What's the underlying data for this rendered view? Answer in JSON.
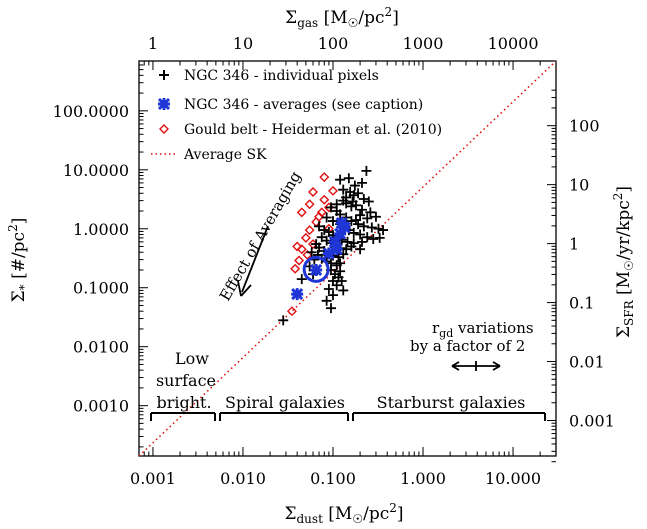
{
  "chart_data": {
    "type": "scatter",
    "title": "",
    "x_bottom": {
      "label_main": "Σ",
      "label_sub": "dust",
      "label_unit": " [M",
      "label_sun": "☉",
      "label_tail": "/pc",
      "label_sup": "2",
      "label_end": "]",
      "scale": "log",
      "range": [
        0.0007,
        30
      ],
      "ticks": [
        0.001,
        0.01,
        0.1,
        1,
        10
      ],
      "tick_labels": [
        "0.001",
        "0.010",
        "0.100",
        "1.000",
        "10.000"
      ]
    },
    "x_top": {
      "label_main": "Σ",
      "label_sub": "gas",
      "label_unit": " [M",
      "label_sun": "☉",
      "label_tail": "/pc",
      "label_sup": "2",
      "label_end": "]",
      "scale": "log",
      "range": [
        0.7,
        30000
      ],
      "ticks": [
        1,
        10,
        100,
        1000,
        10000
      ],
      "tick_labels": [
        "1",
        "10",
        "100",
        "1000",
        "10000"
      ]
    },
    "y_left": {
      "label_main": "Σ",
      "label_sub": "*",
      "label_unit": " [#/pc",
      "label_sup": "2",
      "label_end": "]",
      "scale": "log",
      "range": [
        0.00014,
        700
      ],
      "ticks": [
        0.001,
        0.01,
        0.1,
        1,
        10,
        100
      ],
      "tick_labels": [
        "0.0010",
        "0.0100",
        "0.1000",
        "1.0000",
        "10.0000",
        "100.0000"
      ]
    },
    "y_right": {
      "label_main": "Σ",
      "label_sub": "SFR",
      "label_unit": " [M",
      "label_sun": "☉",
      "label_tail": "/yr/kpc",
      "label_sup": "2",
      "label_end": "]",
      "scale": "log",
      "ticks": [
        0.001,
        0.01,
        0.1,
        1,
        10,
        100
      ],
      "tick_labels": [
        "0.001",
        "0.01",
        "0.1",
        "1",
        "10",
        "100"
      ]
    },
    "legend": {
      "position": "top-left",
      "entries": [
        {
          "label": "NGC 346 - individual pixels",
          "marker": "plus",
          "color": "#000000"
        },
        {
          "label": "NGC 346 - averages (see caption)",
          "marker": "x-heavy",
          "color": "#1f35d6"
        },
        {
          "label": "Gould belt - Heiderman et al. (2010)",
          "marker": "diamond",
          "color": "#e01010"
        },
        {
          "label": "Average SK",
          "marker": "dotted-line",
          "color": "#e01010"
        }
      ]
    },
    "series": [
      {
        "name": "NGC 346 - individual pixels",
        "marker": "plus",
        "color": "#000000",
        "points": [
          [
            0.235,
            9.6
          ],
          [
            0.21,
            6.0
          ],
          [
            0.15,
            7.2
          ],
          [
            0.175,
            5.4
          ],
          [
            0.12,
            6.8
          ],
          [
            0.13,
            4.6
          ],
          [
            0.155,
            4.2
          ],
          [
            0.17,
            3.7
          ],
          [
            0.19,
            4.0
          ],
          [
            0.22,
            3.2
          ],
          [
            0.25,
            2.9
          ],
          [
            0.13,
            3.0
          ],
          [
            0.14,
            2.7
          ],
          [
            0.16,
            2.4
          ],
          [
            0.18,
            2.5
          ],
          [
            0.21,
            2.1
          ],
          [
            0.26,
            1.9
          ],
          [
            0.3,
            1.6
          ],
          [
            0.24,
            1.5
          ],
          [
            0.095,
            2.3
          ],
          [
            0.11,
            2.0
          ],
          [
            0.12,
            1.75
          ],
          [
            0.14,
            1.55
          ],
          [
            0.16,
            1.35
          ],
          [
            0.19,
            1.2
          ],
          [
            0.22,
            1.1
          ],
          [
            0.27,
            1.05
          ],
          [
            0.32,
            1.0
          ],
          [
            0.36,
            0.95
          ],
          [
            0.085,
            1.55
          ],
          [
            0.1,
            1.35
          ],
          [
            0.12,
            1.2
          ],
          [
            0.135,
            1.05
          ],
          [
            0.15,
            0.95
          ],
          [
            0.17,
            0.85
          ],
          [
            0.2,
            0.8
          ],
          [
            0.24,
            0.72
          ],
          [
            0.28,
            0.67
          ],
          [
            0.33,
            0.7
          ],
          [
            0.07,
            1.1
          ],
          [
            0.08,
            0.95
          ],
          [
            0.09,
            0.88
          ],
          [
            0.1,
            0.78
          ],
          [
            0.11,
            0.7
          ],
          [
            0.125,
            0.65
          ],
          [
            0.145,
            0.6
          ],
          [
            0.17,
            0.57
          ],
          [
            0.21,
            0.6
          ],
          [
            0.075,
            0.72
          ],
          [
            0.085,
            0.63
          ],
          [
            0.095,
            0.57
          ],
          [
            0.105,
            0.5
          ],
          [
            0.12,
            0.47
          ],
          [
            0.14,
            0.45
          ],
          [
            0.16,
            0.5
          ],
          [
            0.065,
            0.55
          ],
          [
            0.07,
            0.48
          ],
          [
            0.08,
            0.42
          ],
          [
            0.09,
            0.38
          ],
          [
            0.1,
            0.35
          ],
          [
            0.115,
            0.33
          ],
          [
            0.13,
            0.37
          ],
          [
            0.068,
            0.36
          ],
          [
            0.075,
            0.31
          ],
          [
            0.085,
            0.28
          ],
          [
            0.095,
            0.26
          ],
          [
            0.11,
            0.24
          ],
          [
            0.12,
            0.26
          ],
          [
            0.095,
            0.2
          ],
          [
            0.105,
            0.17
          ],
          [
            0.115,
            0.15
          ],
          [
            0.1,
            0.13
          ],
          [
            0.11,
            0.11
          ],
          [
            0.09,
            0.095
          ],
          [
            0.1,
            0.075
          ],
          [
            0.085,
            0.06
          ],
          [
            0.095,
            0.045
          ],
          [
            0.12,
            0.19
          ],
          [
            0.125,
            0.13
          ],
          [
            0.13,
            0.09
          ],
          [
            0.058,
            0.4
          ],
          [
            0.062,
            0.3
          ],
          [
            0.055,
            0.23
          ],
          [
            0.06,
            0.17
          ],
          [
            0.18,
            1.4
          ],
          [
            0.2,
            1.7
          ],
          [
            0.165,
            2.9
          ],
          [
            0.14,
            3.4
          ],
          [
            0.11,
            2.6
          ],
          [
            0.2,
            0.45
          ],
          [
            0.045,
            0.14
          ],
          [
            0.028,
            0.028
          ]
        ]
      },
      {
        "name": "NGC 346 - averages (see caption)",
        "marker": "x-heavy",
        "color": "#1f35d6",
        "points": [
          [
            0.04,
            0.078
          ],
          [
            0.065,
            0.2
          ],
          [
            0.105,
            0.6
          ],
          [
            0.12,
            0.82
          ],
          [
            0.135,
            1.05
          ],
          [
            0.125,
            1.25
          ],
          [
            0.11,
            0.45
          ],
          [
            0.09,
            0.38
          ]
        ],
        "highlight": {
          "x": 0.065,
          "y": 0.205
        }
      },
      {
        "name": "Gould belt - Heiderman et al. (2010)",
        "marker": "diamond",
        "color": "#e01010",
        "points": [
          [
            0.08,
            7.5
          ],
          [
            0.06,
            4.2
          ],
          [
            0.1,
            4.4
          ],
          [
            0.055,
            2.6
          ],
          [
            0.08,
            3.1
          ],
          [
            0.045,
            1.9
          ],
          [
            0.07,
            1.6
          ],
          [
            0.065,
            1.3
          ],
          [
            0.055,
            0.95
          ],
          [
            0.09,
            1.0
          ],
          [
            0.05,
            0.7
          ],
          [
            0.04,
            0.5
          ],
          [
            0.045,
            0.45
          ],
          [
            0.042,
            0.29
          ],
          [
            0.038,
            0.21
          ],
          [
            0.052,
            0.36
          ],
          [
            0.06,
            0.55
          ],
          [
            0.035,
            0.04
          ],
          [
            0.075,
            1.9
          ],
          [
            0.09,
            2.3
          ]
        ]
      },
      {
        "name": "Average SK",
        "line": "dotted",
        "color": "#e01010",
        "points": [
          [
            0.0007,
            0.00014
          ],
          [
            30,
            700
          ]
        ]
      }
    ],
    "annotations": {
      "averaging": "Effect of Averaging",
      "rgd_prefix": "r",
      "rgd_sub": "gd",
      "rgd_line1_tail": " variations",
      "rgd_line2": "by a factor of 2"
    },
    "regions": [
      {
        "label_lines": [
          "Low",
          "surface",
          "bright."
        ],
        "x_range": [
          0.0008,
          0.005
        ]
      },
      {
        "label_lines": [
          "Spiral galaxies"
        ],
        "x_range": [
          0.005,
          0.15
        ]
      },
      {
        "label_lines": [
          "Starburst galaxies"
        ],
        "x_range": [
          0.15,
          25
        ]
      }
    ]
  }
}
